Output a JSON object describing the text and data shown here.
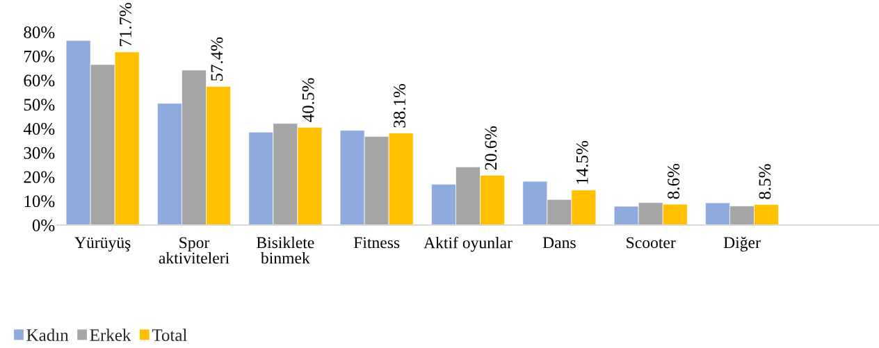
{
  "chart_data": {
    "type": "bar",
    "categories": [
      "Yürüyüş",
      "Spor\naktiviteleri",
      "Bisiklete\nbinmek",
      "Fitness",
      "Aktif oyunlar",
      "Dans",
      "Scooter",
      "Diğer",
      null
    ],
    "series": [
      {
        "name": "Kadın",
        "color": "#8faadc",
        "values": [
          76.5,
          50.4,
          38.5,
          39.2,
          16.9,
          18.1,
          7.8,
          9.2,
          null
        ]
      },
      {
        "name": "Erkek",
        "color": "#a5a5a5",
        "values": [
          66.5,
          64.2,
          42.1,
          36.7,
          24.1,
          10.6,
          9.3,
          7.9,
          null
        ]
      },
      {
        "name": "Total",
        "color": "#ffc000",
        "values": [
          71.7,
          57.4,
          40.5,
          38.1,
          20.6,
          14.5,
          8.6,
          8.5,
          null
        ],
        "value_labels": [
          "71.7%",
          "57.4%",
          "40.5%",
          "38.1%",
          "20.6%",
          "14.5%",
          "8.6%",
          "8.5%",
          null
        ]
      }
    ],
    "ylim": [
      0,
      80
    ],
    "yticks": [
      {
        "value": 0,
        "label": "0%"
      },
      {
        "value": 10,
        "label": "10%"
      },
      {
        "value": 20,
        "label": "20%"
      },
      {
        "value": 30,
        "label": "30%"
      },
      {
        "value": 40,
        "label": "40%"
      },
      {
        "value": 50,
        "label": "50%"
      },
      {
        "value": 60,
        "label": "60%"
      },
      {
        "value": 70,
        "label": "70%"
      },
      {
        "value": 80,
        "label": "80%"
      }
    ],
    "legend": "bottom left"
  }
}
